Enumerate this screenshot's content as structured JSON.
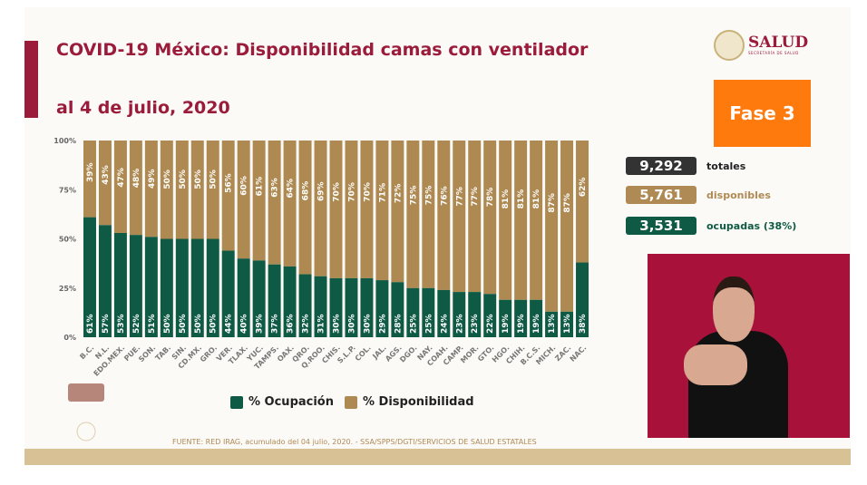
{
  "header": {
    "title_line1": "COVID-19 México: Disponibilidad camas con ventilador",
    "title_line2": "al 4 de julio, 2020"
  },
  "logo": {
    "name": "SALUD",
    "subtitle": "SECRETARÍA DE SALUD"
  },
  "phase": {
    "label": "Fase 3",
    "color": "#ff7a0d"
  },
  "stats": [
    {
      "value": "9,292",
      "label": "totales",
      "color": "#333333"
    },
    {
      "value": "5,761",
      "label": "disponibles",
      "color": "#b08a55"
    },
    {
      "value": "3,531",
      "label": "ocupadas (38%)",
      "color": "#0f5a45"
    }
  ],
  "footer": {
    "source": "FUENTE: RED IRAG, acumulado del 04 julio, 2020. -  SSA/SPPS/DGTI/SERVICIOS DE SALUD ESTATALES"
  },
  "chart_data": {
    "type": "bar",
    "stacked": true,
    "categories": [
      "B.C.",
      "N.L.",
      "EDO.MEX.",
      "PUE.",
      "SON.",
      "TAB.",
      "SIN.",
      "CD.MX.",
      "GRO.",
      "VER.",
      "TLAX.",
      "YUC.",
      "TAMPS.",
      "OAX.",
      "QRO.",
      "Q.ROO.",
      "CHIS.",
      "S.L.P.",
      "COL.",
      "JAL.",
      "AGS.",
      "DGO.",
      "NAY.",
      "COAH.",
      "CAMP.",
      "MOR.",
      "GTO.",
      "HGO.",
      "CHIH.",
      "B.C.S.",
      "MICH.",
      "ZAC.",
      "NAC."
    ],
    "series": [
      {
        "name": "% Ocupación",
        "color": "#0f5a45",
        "values": [
          61,
          57,
          53,
          52,
          51,
          50,
          50,
          50,
          50,
          44,
          40,
          39,
          37,
          36,
          32,
          31,
          30,
          30,
          30,
          29,
          28,
          25,
          25,
          24,
          23,
          23,
          22,
          19,
          19,
          19,
          13,
          13,
          38
        ]
      },
      {
        "name": "% Disponibilidad",
        "color": "#ae8a52",
        "values": [
          39,
          43,
          47,
          48,
          49,
          50,
          50,
          50,
          50,
          56,
          60,
          61,
          63,
          64,
          68,
          69,
          70,
          70,
          70,
          71,
          72,
          75,
          75,
          76,
          77,
          77,
          78,
          81,
          81,
          81,
          87,
          87,
          62
        ]
      }
    ],
    "yticks": [
      "0%",
      "25%",
      "50%",
      "75%",
      "100%"
    ],
    "ylim": [
      0,
      100
    ],
    "legend": "bottom"
  }
}
